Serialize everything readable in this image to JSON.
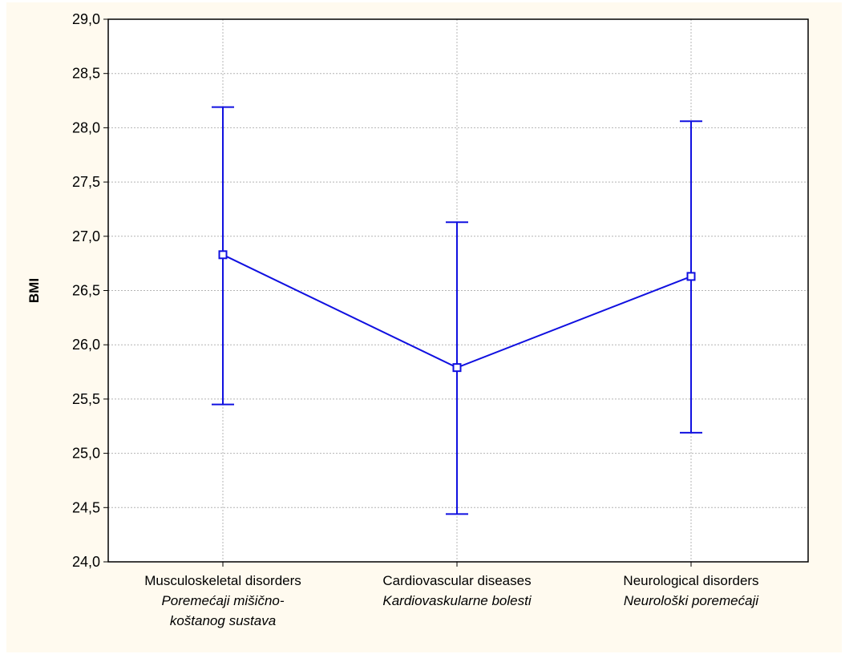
{
  "chart_data": {
    "type": "line",
    "title": "",
    "ylabel": "BMI",
    "xlabel": "",
    "ylim": [
      24.0,
      29.0
    ],
    "yticks": [
      "24,0",
      "24,5",
      "25,0",
      "25,5",
      "26,0",
      "26,5",
      "27,0",
      "27,5",
      "28,0",
      "28,5",
      "29,0"
    ],
    "categories": [
      {
        "label": "Musculoskeletal  disorders",
        "sublabel": [
          "Poremećaji mišično-",
          "koštanog sustava"
        ]
      },
      {
        "label": "Cardiovascular diseases",
        "sublabel": [
          "Kardiovaskularne bolesti"
        ]
      },
      {
        "label": "Neurological disorders",
        "sublabel": [
          "Neurološki poremećaji"
        ]
      }
    ],
    "series": [
      {
        "values": [
          26.83,
          25.79,
          26.63
        ],
        "error_low": [
          25.45,
          24.44,
          25.19
        ],
        "error_high": [
          28.19,
          27.13,
          28.06
        ]
      }
    ],
    "grid": true,
    "colors": {
      "background": "#fffaef",
      "plot_background": "#ffffff",
      "series": "#1010e0",
      "grid": "#b4b4b4"
    }
  }
}
